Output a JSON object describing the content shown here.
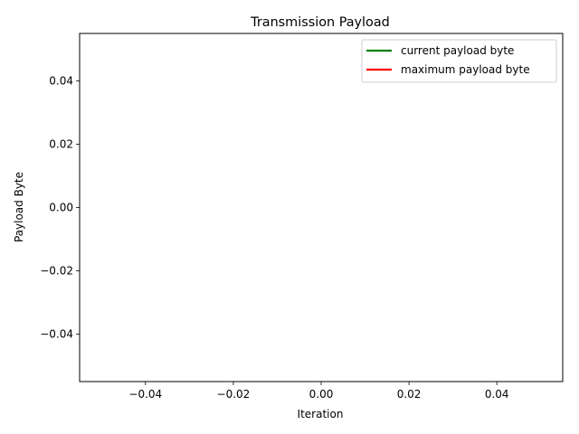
{
  "chart_data": {
    "type": "line",
    "title": "Transmission Payload",
    "xlabel": "Iteration",
    "ylabel": "Payload Byte",
    "xlim": [
      -0.055,
      0.055
    ],
    "ylim": [
      -0.055,
      0.055
    ],
    "xticks": [
      -0.04,
      -0.02,
      0.0,
      0.02,
      0.04
    ],
    "xtick_labels": [
      "−0.04",
      "−0.02",
      "0.00",
      "0.02",
      "0.04"
    ],
    "yticks": [
      -0.04,
      -0.02,
      0.0,
      0.02,
      0.04
    ],
    "ytick_labels": [
      "−0.04",
      "−0.02",
      "0.00",
      "0.02",
      "0.04"
    ],
    "grid": false,
    "legend_position": "upper right",
    "series": [
      {
        "name": "current payload byte",
        "color": "#008000",
        "x": [],
        "y": []
      },
      {
        "name": "maximum payload byte",
        "color": "#ff0000",
        "x": [],
        "y": []
      }
    ]
  }
}
